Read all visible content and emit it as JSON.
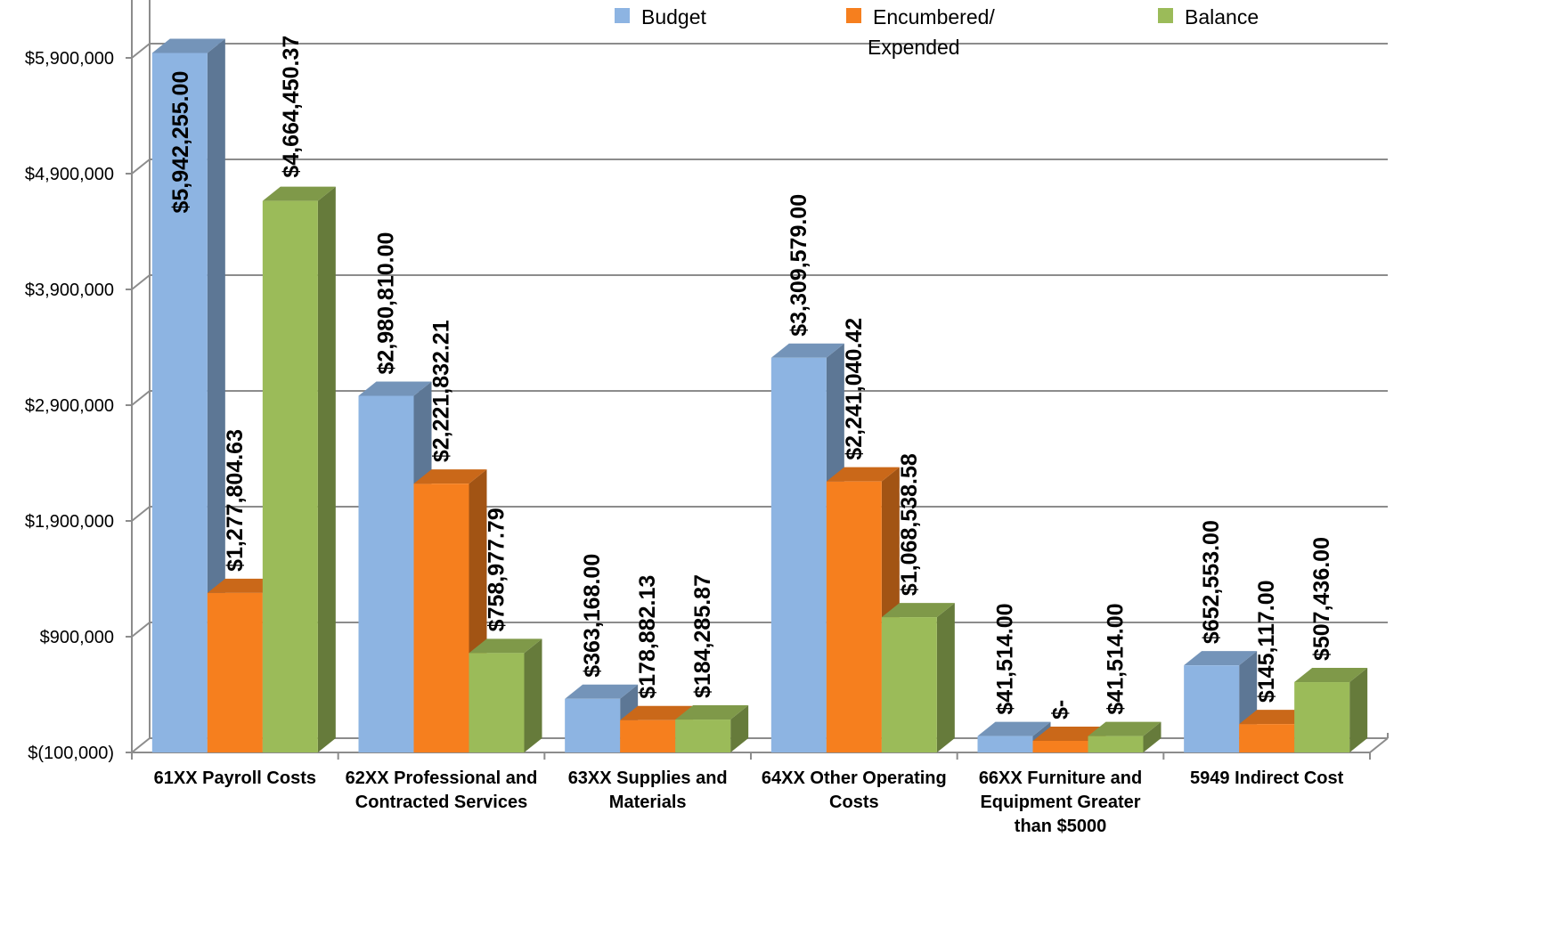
{
  "chart_data": {
    "type": "bar",
    "style": "3d-clustered-column",
    "categories": [
      "61XX Payroll Costs",
      "62XX Professional and Contracted Services",
      "63XX Supplies and Materials",
      "64XX Other Operating Costs",
      "66XX Furniture and Equipment Greater than $5000",
      "5949 Indirect Cost"
    ],
    "series": [
      {
        "name": "Budget",
        "color": "#8DB4E2",
        "values": [
          5942255.0,
          2980810.0,
          363168.0,
          3309579.0,
          41514.0,
          652553.0
        ],
        "labels": [
          "$5,942,255.00",
          "$2,980,810.00",
          "$363,168.00",
          "$3,309,579.00",
          "$41,514.00",
          "$652,553.00"
        ]
      },
      {
        "name": "Encumbered/ Expended",
        "color": "#F67F1E",
        "values": [
          1277804.63,
          2221832.21,
          178882.13,
          2241040.42,
          0,
          145117.0
        ],
        "labels": [
          "$1,277,804.63",
          "$2,221,832.21",
          "$178,882.13",
          "$2,241,040.42",
          "$-",
          "$145,117.00"
        ]
      },
      {
        "name": "Balance",
        "color": "#9BBB59",
        "values": [
          4664450.37,
          758977.79,
          184285.87,
          1068538.58,
          41514.0,
          507436.0
        ],
        "labels": [
          "$4,664,450.37",
          "$758,977.79",
          "$184,285.87",
          "$1,068,538.58",
          "$41,514.00",
          "$507,436.00"
        ]
      }
    ],
    "yticks": [
      -100000,
      900000,
      1900000,
      2900000,
      3900000,
      4900000,
      5900000
    ],
    "ytick_labels": [
      "$(100,000)",
      "$900,000",
      "$1,900,000",
      "$2,900,000",
      "$3,900,000",
      "$4,900,000",
      "$5,900,000"
    ],
    "ylim": [
      -100000,
      6350000
    ],
    "grid": true,
    "legend_position": "top"
  }
}
